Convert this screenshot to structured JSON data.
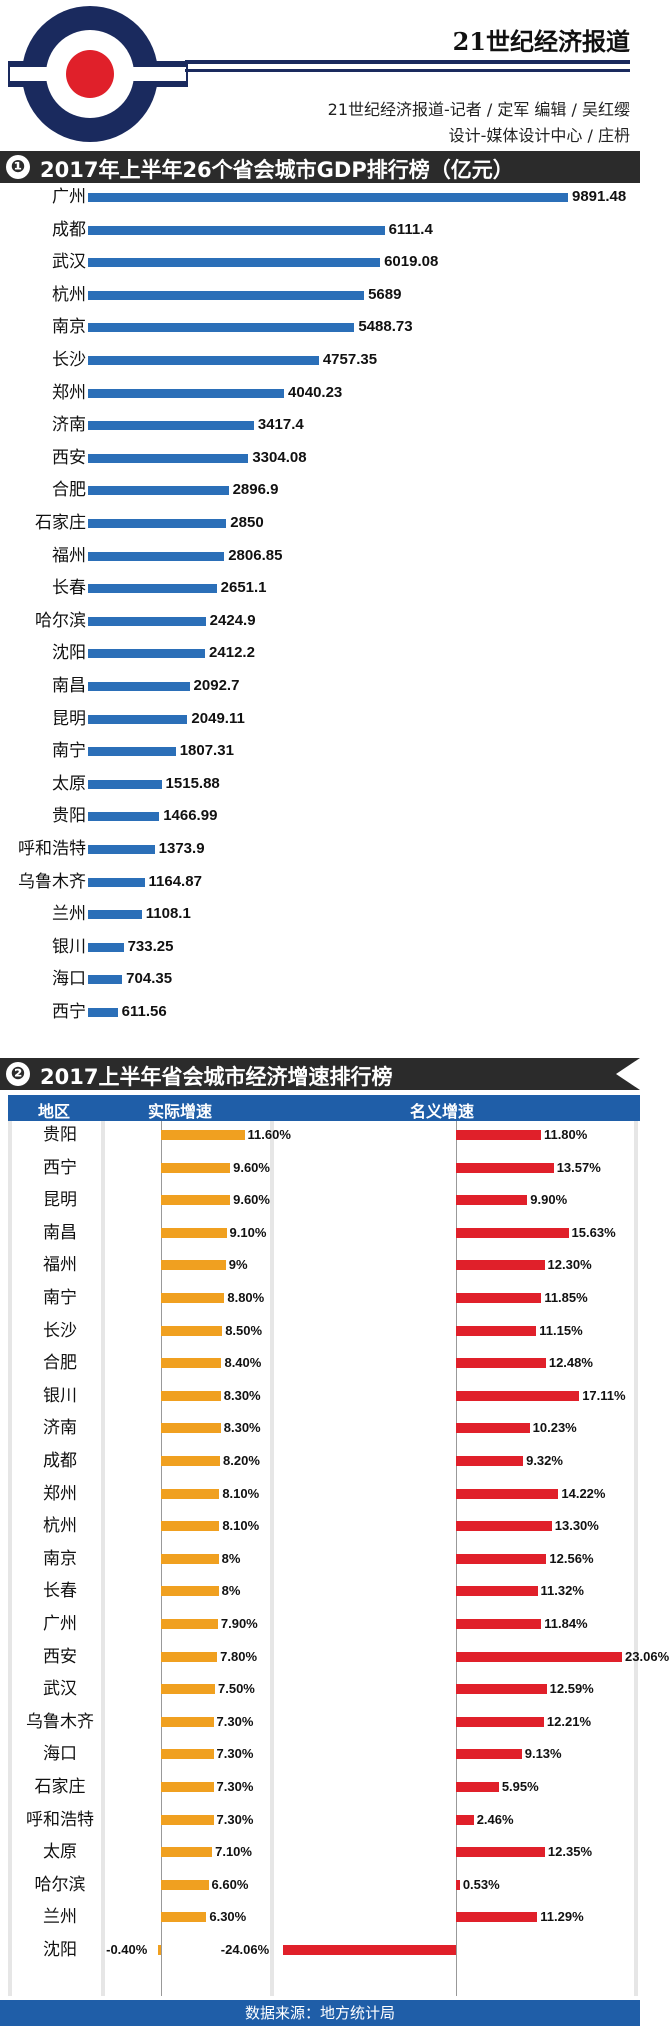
{
  "header": {
    "brand": "21世纪经济报道",
    "credit_line1": "21世纪经济报道-记者 / 定军   编辑 / 吴红缨",
    "credit_line2": "设计-媒体设计中心 / 庄枬"
  },
  "colors": {
    "gdp_bar": "#2b6fb8",
    "real_growth_bar": "#f0a020",
    "nominal_growth_bar": "#e0202a",
    "table_header": "#1f5ea8",
    "section_header": "#2b2b2b",
    "logo_navy": "#1a2a5e",
    "logo_red": "#e0202a"
  },
  "chart_data": [
    {
      "type": "bar",
      "section_number": "❶",
      "title": "2017年上半年26个省会城市GDP排行榜（亿元）",
      "orientation": "horizontal",
      "xlim": [
        0,
        9891.48
      ],
      "categories": [
        "广州",
        "成都",
        "武汉",
        "杭州",
        "南京",
        "长沙",
        "郑州",
        "济南",
        "西安",
        "合肥",
        "石家庄",
        "福州",
        "长春",
        "哈尔滨",
        "沈阳",
        "南昌",
        "昆明",
        "南宁",
        "太原",
        "贵阳",
        "呼和浩特",
        "乌鲁木齐",
        "兰州",
        "银川",
        "海口",
        "西宁"
      ],
      "values": [
        9891.48,
        6111.4,
        6019.08,
        5689,
        5488.73,
        4757.35,
        4040.23,
        3417.4,
        3304.08,
        2896.9,
        2850,
        2806.85,
        2651.1,
        2424.9,
        2412.2,
        2092.7,
        2049.11,
        1807.31,
        1515.88,
        1466.99,
        1373.9,
        1164.87,
        1108.1,
        733.25,
        704.35,
        611.56
      ],
      "labels": [
        "9891.48",
        "6111.4",
        "6019.08",
        "5689",
        "5488.73",
        "4757.35",
        "4040.23",
        "3417.4",
        "3304.08",
        "2896.9",
        "2850",
        "2806.85",
        "2651.1",
        "2424.9",
        "2412.2",
        "2092.7",
        "2049.11",
        "1807.31",
        "1515.88",
        "1466.99",
        "1373.9",
        "1164.87",
        "1108.1",
        "733.25",
        "704.35",
        "611.56"
      ]
    },
    {
      "type": "bar",
      "section_number": "❷",
      "title": "2017上半年省会城市经济增速排行榜",
      "orientation": "horizontal",
      "column_headers": {
        "region": "地区",
        "real": "实际增速",
        "nominal": "名义增速"
      },
      "categories": [
        "贵阳",
        "西宁",
        "昆明",
        "南昌",
        "福州",
        "南宁",
        "长沙",
        "合肥",
        "银川",
        "济南",
        "成都",
        "郑州",
        "杭州",
        "南京",
        "长春",
        "广州",
        "西安",
        "武汉",
        "乌鲁木齐",
        "海口",
        "石家庄",
        "呼和浩特",
        "太原",
        "哈尔滨",
        "兰州",
        "沈阳"
      ],
      "series": [
        {
          "name": "实际增速",
          "values": [
            11.6,
            9.6,
            9.6,
            9.1,
            9,
            8.8,
            8.5,
            8.4,
            8.3,
            8.3,
            8.2,
            8.1,
            8.1,
            8,
            8,
            7.9,
            7.8,
            7.5,
            7.3,
            7.3,
            7.3,
            7.3,
            7.1,
            6.6,
            6.3,
            -0.4
          ],
          "labels": [
            "11.60%",
            "9.60%",
            "9.60%",
            "9.10%",
            "9%",
            "8.80%",
            "8.50%",
            "8.40%",
            "8.30%",
            "8.30%",
            "8.20%",
            "8.10%",
            "8.10%",
            "8%",
            "8%",
            "7.90%",
            "7.80%",
            "7.50%",
            "7.30%",
            "7.30%",
            "7.30%",
            "7.30%",
            "7.10%",
            "6.60%",
            "6.30%",
            "-0.40%"
          ]
        },
        {
          "name": "名义增速",
          "values": [
            11.8,
            13.57,
            9.9,
            15.63,
            12.3,
            11.85,
            11.15,
            12.48,
            17.11,
            10.23,
            9.32,
            14.22,
            13.3,
            12.56,
            11.32,
            11.84,
            23.06,
            12.59,
            12.21,
            9.13,
            5.95,
            2.46,
            12.35,
            0.53,
            11.29,
            -24.06
          ],
          "labels": [
            "11.80%",
            "13.57%",
            "9.90%",
            "15.63%",
            "12.30%",
            "11.85%",
            "11.15%",
            "12.48%",
            "17.11%",
            "10.23%",
            "9.32%",
            "14.22%",
            "13.30%",
            "12.56%",
            "11.32%",
            "11.84%",
            "23.06%",
            "12.59%",
            "12.21%",
            "9.13%",
            "5.95%",
            "2.46%",
            "12.35%",
            "0.53%",
            "11.29%",
            "-24.06%"
          ]
        }
      ]
    }
  ],
  "footer": {
    "source": "数据来源：地方统计局"
  }
}
